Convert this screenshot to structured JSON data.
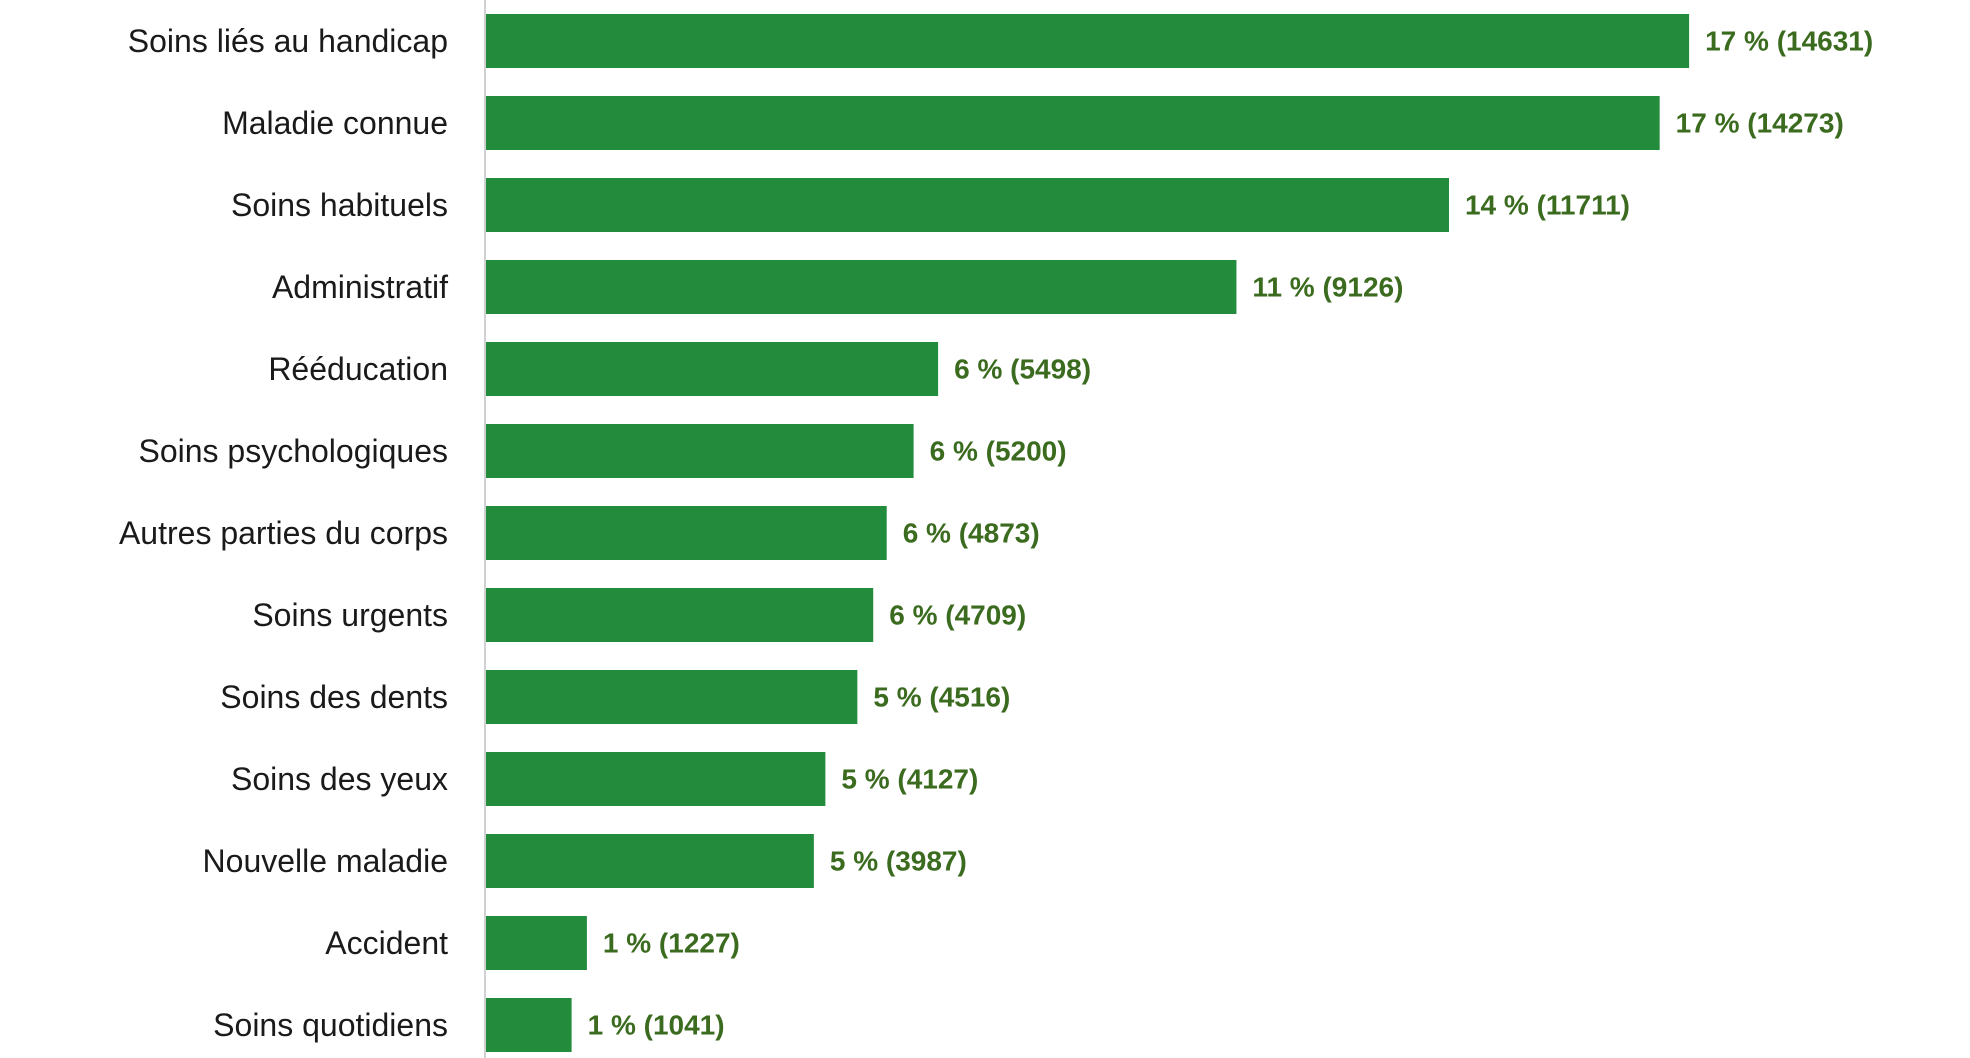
{
  "chart_data": {
    "type": "bar",
    "orientation": "horizontal",
    "title": "",
    "xlabel": "",
    "ylabel": "",
    "categories": [
      "Soins liés au handicap",
      "Maladie connue",
      "Soins habituels",
      "Administratif",
      "Rééducation",
      "Soins psychologiques",
      "Autres parties du corps",
      "Soins urgents",
      "Soins des dents",
      "Soins des yeux",
      "Nouvelle maladie",
      "Accident",
      "Soins quotidiens"
    ],
    "values": [
      14631,
      14273,
      11711,
      9126,
      5498,
      5200,
      4873,
      4709,
      4516,
      4127,
      3987,
      1227,
      1041
    ],
    "data_labels": [
      "17 % (14631)",
      "17 % (14273)",
      "14 % (11711)",
      "11 % (9126)",
      "6 % (5498)",
      "6 % (5200)",
      "6 % (4873)",
      "6 % (4709)",
      "5 % (4516)",
      "5 % (4127)",
      "5 % (3987)",
      "1 % (1227)",
      "1 % (1041)"
    ],
    "bar_color": "#228b3c",
    "label_color": "#3b6b1e",
    "axis_line_color": "#d0d0d0",
    "grid": false,
    "legend": "none"
  }
}
